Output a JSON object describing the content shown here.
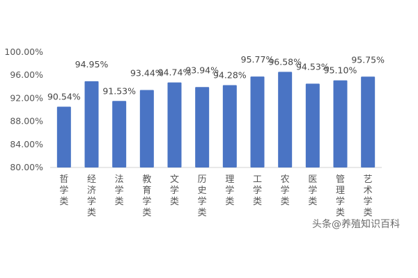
{
  "chart_data": {
    "type": "bar",
    "categories": [
      "哲学类",
      "经济学类",
      "法学类",
      "教育学类",
      "文学类",
      "历史学类",
      "理学类",
      "工学类",
      "农学类",
      "医学类",
      "管理学类",
      "艺术学类"
    ],
    "values": [
      90.54,
      94.95,
      91.53,
      93.44,
      94.74,
      93.94,
      94.28,
      95.77,
      96.58,
      94.53,
      95.1,
      95.75
    ],
    "value_labels": [
      "90.54%",
      "94.95%",
      "91.53%",
      "93.44%",
      "94.74%",
      "93.94%",
      "94.28%",
      "95.77%",
      "96.58%",
      "94.53%",
      "95.10%",
      "95.75%"
    ],
    "yticks": [
      80,
      84,
      88,
      92,
      96,
      100
    ],
    "ytick_labels": [
      "80.00%",
      "84.00%",
      "88.00%",
      "92.00%",
      "96.00%",
      "100.00%"
    ],
    "ylim": [
      80,
      100
    ],
    "grid": false,
    "bar_color": "#4a74c4",
    "title": "",
    "xlabel": "",
    "ylabel": ""
  },
  "watermark": "头条@养殖知识百科"
}
